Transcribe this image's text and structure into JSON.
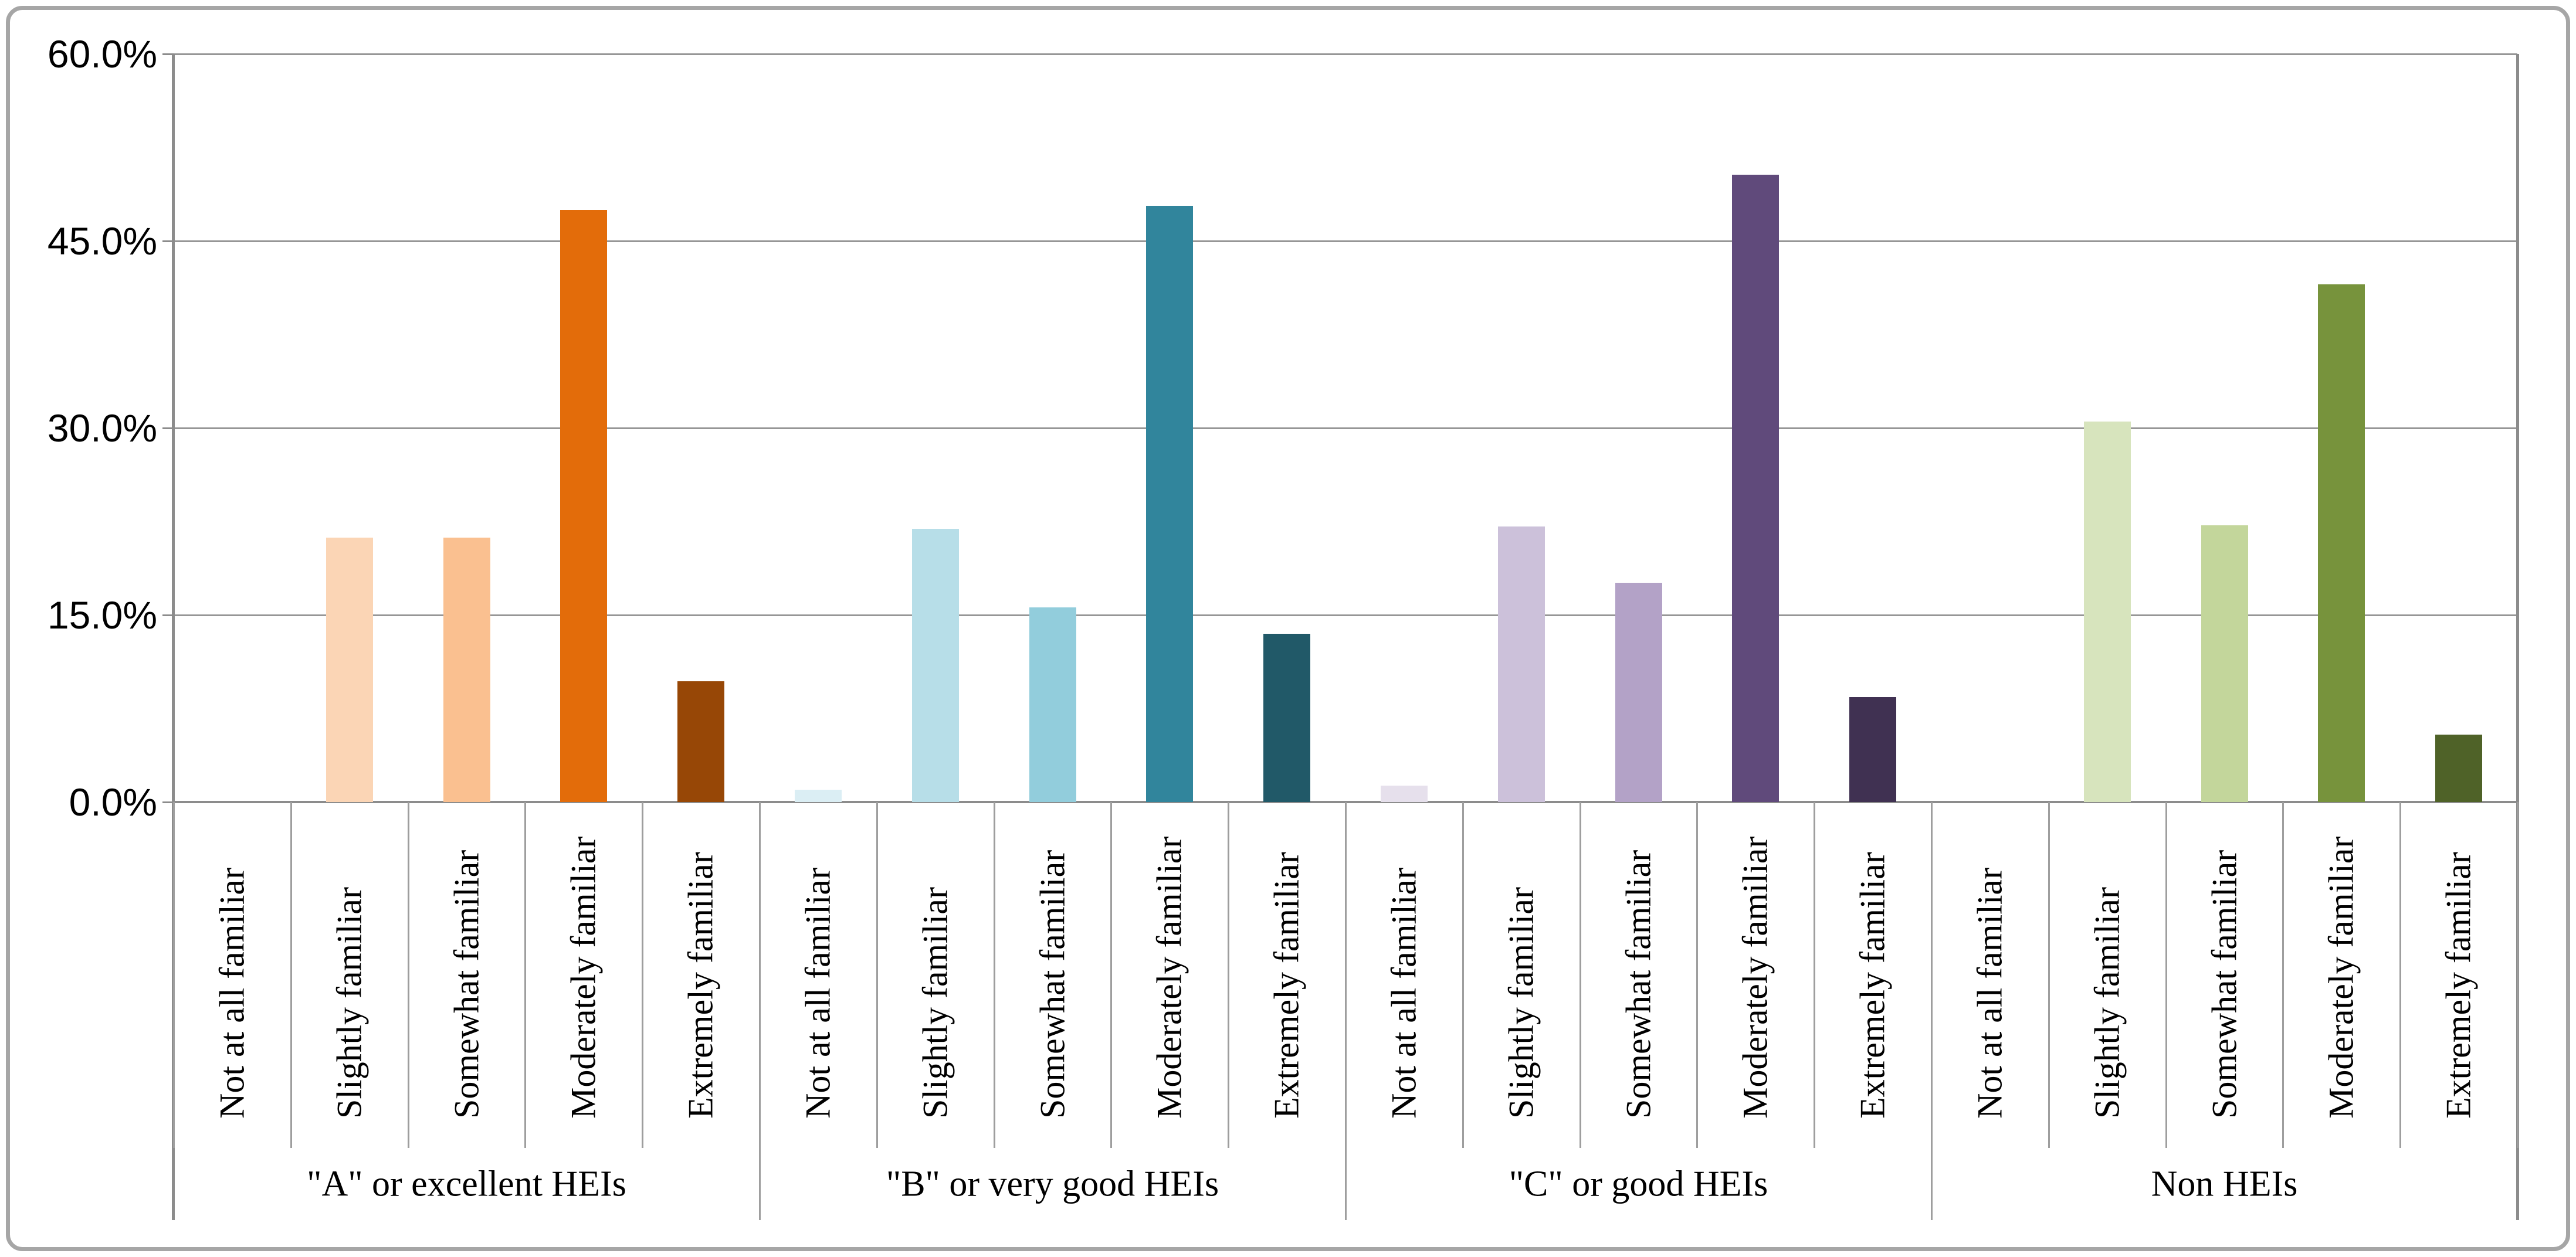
{
  "chart_data": {
    "type": "bar",
    "title": "",
    "xlabel": "",
    "ylabel": "",
    "ylim": [
      0,
      60
    ],
    "ytick_step": 15,
    "ytick_labels_top_to_bottom": [
      "60.0%",
      "45.0%",
      "30.0%",
      "15.0%",
      "0.0%"
    ],
    "grid": true,
    "legend": "none",
    "categories": [
      "Not at all familiar",
      "Slightly familiar",
      "Somewhat familiar",
      "Moderately familiar",
      "Extremely familiar"
    ],
    "groups": [
      {
        "label": "\"A\" or excellent HEIs",
        "values": [
          0.0,
          21.2,
          21.2,
          47.5,
          9.7
        ],
        "colors": [
          "#FDEADA",
          "#FBD5B5",
          "#FAC090",
          "#E36C0A",
          "#974706"
        ]
      },
      {
        "label": "\"B\" or very good HEIs",
        "values": [
          1.0,
          21.9,
          15.6,
          47.8,
          13.5
        ],
        "colors": [
          "#DBEEF4",
          "#B7DEE8",
          "#92CDDC",
          "#31859C",
          "#215968"
        ]
      },
      {
        "label": "\"C\" or good HEIs",
        "values": [
          1.3,
          22.1,
          17.6,
          50.3,
          8.4
        ],
        "colors": [
          "#E6E0EC",
          "#CCC1DA",
          "#B3A2C7",
          "#604A7B",
          "#403152"
        ]
      },
      {
        "label": "Non HEIs",
        "values": [
          0.0,
          30.5,
          22.2,
          41.5,
          5.4
        ],
        "colors": [
          "#EBF1DE",
          "#D7E4BD",
          "#C3D69B",
          "#77933C",
          "#4F6228"
        ]
      }
    ],
    "style_colors": {
      "gridline": "#969696",
      "axis_line": "#8c8c8c",
      "category_divider": "#9e9e9e",
      "outer_border": "#a6a6a6",
      "background": "#ffffff"
    }
  }
}
